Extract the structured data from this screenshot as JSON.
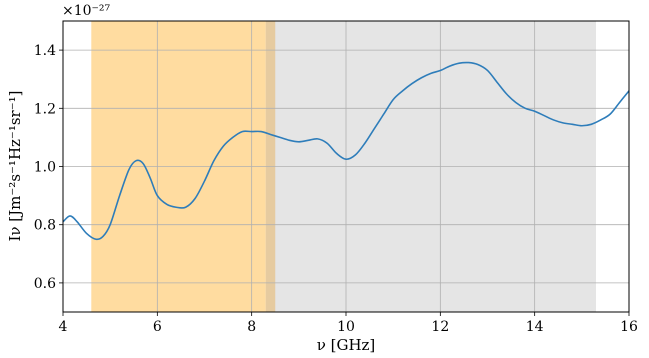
{
  "chart_data": {
    "type": "line",
    "title": "",
    "xlabel": "ν [GHz]",
    "ylabel": "Iν [Jm⁻²s⁻¹Hz⁻¹sr⁻¹]",
    "y_multiplier": "×10⁻²⁷",
    "xlim": [
      4,
      16
    ],
    "ylim": [
      0.5,
      1.5
    ],
    "x_ticks": [
      "4",
      "6",
      "8",
      "10",
      "12",
      "14",
      "16"
    ],
    "y_ticks": [
      "0.6",
      "0.8",
      "1.0",
      "1.2",
      "1.4"
    ],
    "grid": true,
    "bands": [
      {
        "x0": 4.6,
        "x1": 8.5,
        "color": "#ffdca0"
      },
      {
        "x0": 8.3,
        "x1": 15.3,
        "color": "#e5e5e5"
      }
    ],
    "overlap_color": "#e6cba0",
    "series": [
      {
        "color": "#2e7dba",
        "x": [
          4.0,
          4.15,
          4.3,
          4.5,
          4.7,
          4.85,
          5.0,
          5.2,
          5.4,
          5.55,
          5.7,
          5.85,
          6.0,
          6.2,
          6.4,
          6.6,
          6.8,
          7.0,
          7.2,
          7.4,
          7.6,
          7.8,
          8.0,
          8.2,
          8.4,
          8.6,
          8.8,
          9.0,
          9.2,
          9.4,
          9.6,
          9.8,
          10.0,
          10.2,
          10.4,
          10.6,
          10.8,
          11.0,
          11.2,
          11.4,
          11.6,
          11.8,
          12.0,
          12.2,
          12.4,
          12.6,
          12.8,
          13.0,
          13.2,
          13.4,
          13.6,
          13.8,
          14.0,
          14.2,
          14.4,
          14.6,
          14.8,
          15.0,
          15.2,
          15.4,
          15.6,
          15.8,
          16.0
        ],
        "y": [
          0.81,
          0.83,
          0.81,
          0.77,
          0.75,
          0.76,
          0.8,
          0.9,
          0.99,
          1.02,
          1.01,
          0.96,
          0.9,
          0.87,
          0.86,
          0.86,
          0.89,
          0.95,
          1.02,
          1.07,
          1.1,
          1.12,
          1.12,
          1.12,
          1.11,
          1.1,
          1.09,
          1.085,
          1.09,
          1.095,
          1.08,
          1.045,
          1.025,
          1.04,
          1.08,
          1.13,
          1.18,
          1.23,
          1.26,
          1.285,
          1.305,
          1.32,
          1.33,
          1.345,
          1.355,
          1.357,
          1.35,
          1.33,
          1.29,
          1.25,
          1.22,
          1.2,
          1.19,
          1.175,
          1.16,
          1.15,
          1.145,
          1.14,
          1.145,
          1.16,
          1.18,
          1.22,
          1.26
        ]
      }
    ]
  }
}
